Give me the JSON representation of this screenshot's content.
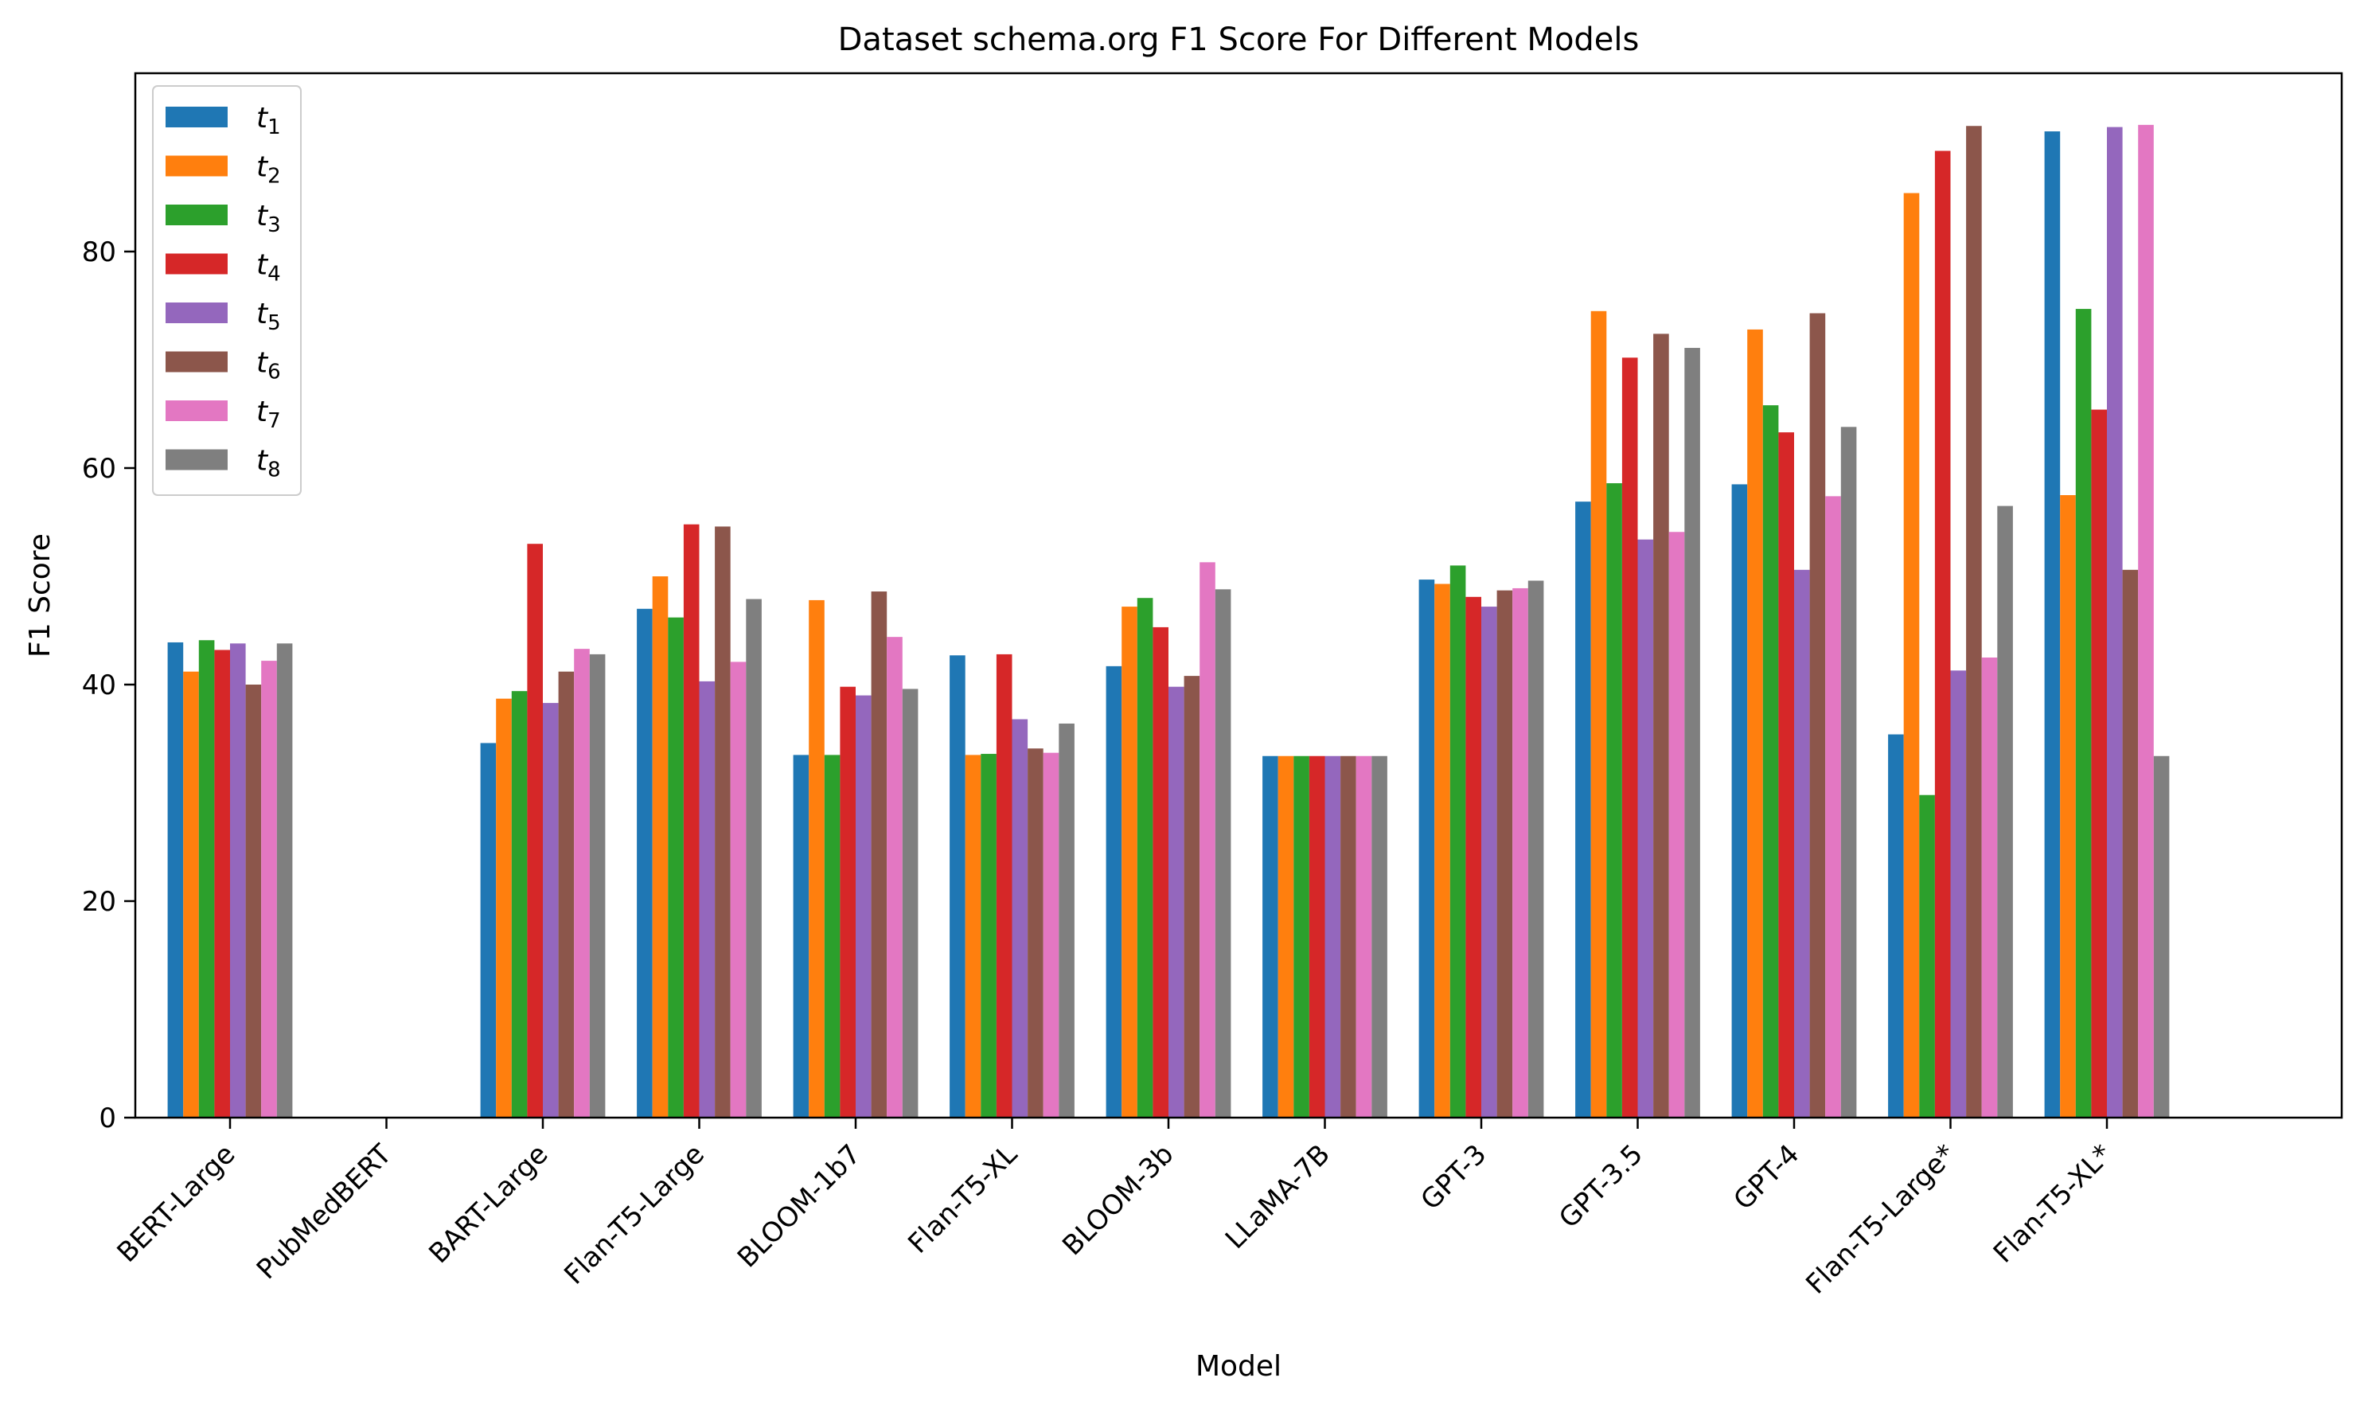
{
  "chart_data": {
    "type": "bar",
    "title": "Dataset schema.org F1 Score For Different Models",
    "xlabel": "Model",
    "ylabel": "F1 Score",
    "ylim": [
      0,
      96.5
    ],
    "yticks": [
      0,
      20,
      40,
      60,
      80
    ],
    "grid": false,
    "legend_position": "top-left",
    "categories": [
      "BERT-Large",
      "PubMedBERT",
      "BART-Large",
      "Flan-T5-Large",
      "BLOOM-1b7",
      "Flan-T5-XL",
      "BLOOM-3b",
      "LLaMA-7B",
      "GPT-3",
      "GPT-3.5",
      "GPT-4",
      "Flan-T5-Large*",
      "Flan-T5-XL*"
    ],
    "series": [
      {
        "name": "t",
        "sub": "1",
        "color": "#1f77b4",
        "values": [
          43.9,
          null,
          34.6,
          47.0,
          33.5,
          42.7,
          41.7,
          33.4,
          49.7,
          56.9,
          58.5,
          35.4,
          91.1
        ]
      },
      {
        "name": "t",
        "sub": "2",
        "color": "#ff7f0e",
        "values": [
          41.2,
          null,
          38.7,
          50.0,
          47.8,
          33.5,
          47.2,
          33.4,
          49.3,
          74.5,
          72.8,
          85.4,
          57.5
        ]
      },
      {
        "name": "t",
        "sub": "3",
        "color": "#2ca02c",
        "values": [
          44.1,
          null,
          39.4,
          46.2,
          33.5,
          33.6,
          48.0,
          33.4,
          51.0,
          58.6,
          65.8,
          29.8,
          74.7
        ]
      },
      {
        "name": "t",
        "sub": "4",
        "color": "#d62728",
        "values": [
          43.2,
          null,
          53.0,
          54.8,
          39.8,
          42.8,
          45.3,
          33.4,
          48.1,
          70.2,
          63.3,
          89.3,
          65.4
        ]
      },
      {
        "name": "t",
        "sub": "5",
        "color": "#9467bd",
        "values": [
          43.8,
          null,
          38.3,
          40.3,
          39.0,
          36.8,
          39.8,
          33.4,
          47.2,
          53.4,
          50.6,
          41.3,
          91.5
        ]
      },
      {
        "name": "t",
        "sub": "6",
        "color": "#8c564b",
        "values": [
          40.0,
          null,
          41.2,
          54.6,
          48.6,
          34.1,
          40.8,
          33.4,
          48.7,
          72.4,
          74.3,
          91.6,
          50.6
        ]
      },
      {
        "name": "t",
        "sub": "7",
        "color": "#e377c2",
        "values": [
          42.2,
          null,
          43.3,
          42.1,
          44.4,
          33.7,
          51.3,
          33.4,
          48.9,
          54.1,
          57.4,
          42.5,
          91.7
        ]
      },
      {
        "name": "t",
        "sub": "8",
        "color": "#7f7f7f",
        "values": [
          43.8,
          null,
          42.8,
          47.9,
          39.6,
          36.4,
          48.8,
          33.4,
          49.6,
          71.1,
          63.8,
          56.5,
          33.4
        ]
      }
    ]
  }
}
